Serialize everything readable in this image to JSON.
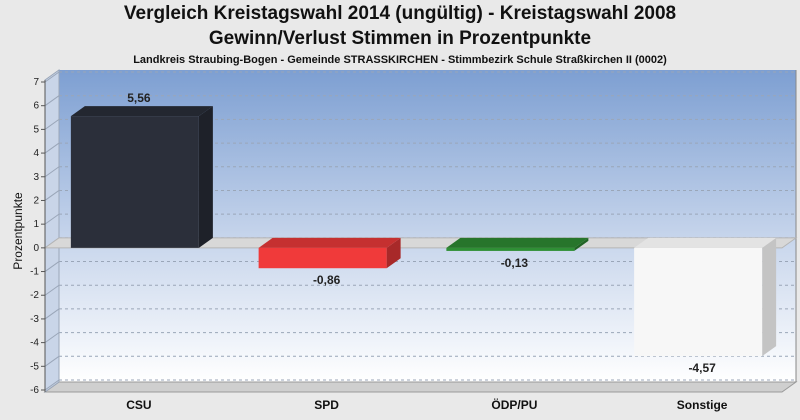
{
  "header": {
    "title_line1": "Vergleich Kreistagswahl 2014 (ungültig) - Kreistagswahl 2008",
    "title_line2": "Gewinn/Verlust Stimmen in Prozentpunkte",
    "subtitle": "Landkreis Straubing-Bogen - Gemeinde STRASSKIRCHEN - Stimmbezirk Schule Straßkirchen II (0002)"
  },
  "chart_data": {
    "type": "bar",
    "title": "Vergleich Kreistagswahl 2014 (ungültig) - Kreistagswahl 2008",
    "subtitle": "Gewinn/Verlust Stimmen in Prozentpunkte",
    "ylabel": "Prozentpunkte",
    "xlabel": "",
    "ylim": [
      -6,
      7
    ],
    "yticks": [
      7,
      6,
      5,
      4,
      3,
      2,
      1,
      0,
      -1,
      -2,
      -3,
      -4,
      -5,
      -6
    ],
    "categories": [
      "CSU",
      "SPD",
      "ÖDP/PU",
      "Sonstige"
    ],
    "values": [
      5.56,
      -0.86,
      -0.13,
      -4.57
    ],
    "data_labels": [
      "5,56",
      "-0,86",
      "-0,13",
      "-4,57"
    ],
    "colors": [
      "#2b2f3a",
      "#f03a3a",
      "#2f8f35",
      "#f7f7f7"
    ],
    "grid": true,
    "legend": "none",
    "style": "3d"
  }
}
